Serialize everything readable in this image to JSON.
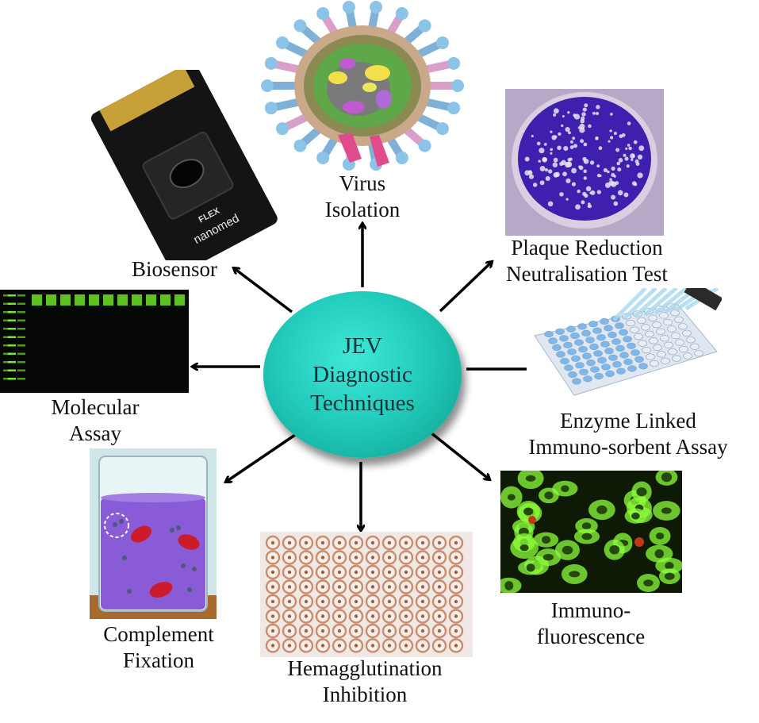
{
  "center": {
    "lines": [
      "JEV",
      "Diagnostic",
      "Techniques"
    ],
    "color": "#23cdbd"
  },
  "techniques": {
    "virus_isolation": [
      "Virus",
      "Isolation"
    ],
    "plaque_reduction": [
      "Plaque Reduction",
      "Neutralisation Test"
    ],
    "elisa": [
      "Enzyme Linked",
      "Immuno-sorbent Assay"
    ],
    "immunofluorescence": [
      "Immuno-",
      "fluorescence"
    ],
    "hemagglutination": [
      "Hemagglutination",
      "Inhibition"
    ],
    "complement_fixation": [
      "Complement",
      "Fixation"
    ],
    "molecular_assay": [
      "Molecular",
      "Assay"
    ],
    "biosensor": [
      "Biosensor"
    ]
  },
  "biosensor_chip": {
    "label": "FLEX",
    "brand": "nanomed"
  },
  "colors": {
    "arrow": "#000000",
    "gel_band": "#7dff2a",
    "plaque_stain": "#3f1fae",
    "elisa_well": "#7ab8ee",
    "fluor_cell": "#8cff3a",
    "hai_well": "#c98c6c",
    "beaker_liquid": "#8a5bd6"
  }
}
